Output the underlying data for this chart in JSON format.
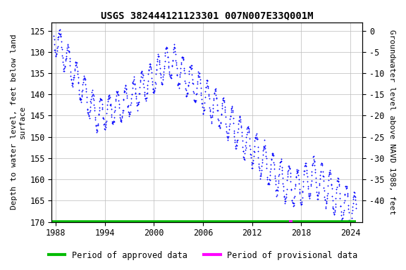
{
  "title": "USGS 382444121123301 007N007E33Q001M",
  "ylabel_left": "Depth to water level, feet below land\nsurface",
  "ylabel_right": "Groundwater level above NAVD 1988, feet",
  "ylim_left": [
    170,
    123
  ],
  "xticks": [
    1988,
    1994,
    2000,
    2006,
    2012,
    2018,
    2024
  ],
  "data_color": "#0000ff",
  "approved_color": "#00bb00",
  "provisional_color": "#ff00ff",
  "background_color": "#ffffff",
  "grid_color": "#bbbbbb",
  "title_fontsize": 10,
  "axis_fontsize": 8,
  "tick_fontsize": 8.5,
  "legend_fontsize": 8.5,
  "approved_start": 1987.6,
  "approved_end": 2024.7,
  "provisional_start": 2016.5,
  "provisional_end": 2016.9,
  "left_yticks": [
    125,
    130,
    135,
    140,
    145,
    150,
    155,
    160,
    165,
    170
  ],
  "right_yticks_positions": [
    125,
    130,
    135,
    140,
    145,
    150,
    155,
    160,
    165
  ],
  "right_yticks_labels": [
    "0",
    "-5",
    "-10",
    "-15",
    "-20",
    "-25",
    "-30",
    "-35",
    "-40"
  ]
}
